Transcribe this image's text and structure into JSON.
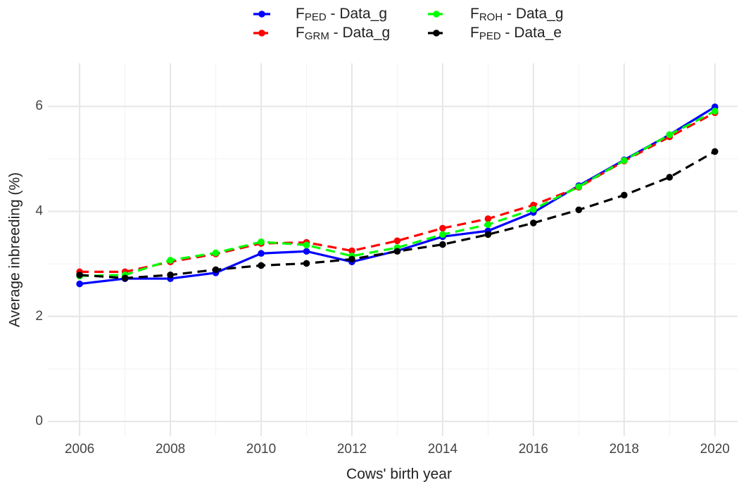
{
  "chart_data": {
    "type": "line",
    "x_label": "Cows' birth year",
    "y_label": "Average inbreeding (%)",
    "x": [
      2006,
      2007,
      2008,
      2009,
      2010,
      2011,
      2012,
      2013,
      2014,
      2015,
      2016,
      2017,
      2018,
      2019,
      2020
    ],
    "series": [
      {
        "name": [
          "F",
          "PED",
          " - Data_g"
        ],
        "color": "#0000ff",
        "line_style": "solid",
        "values": [
          2.62,
          2.72,
          2.72,
          2.83,
          3.2,
          3.24,
          3.04,
          3.25,
          3.52,
          3.63,
          3.98,
          4.49,
          4.98,
          5.46,
          5.99
        ]
      },
      {
        "name": [
          "F",
          "GRM",
          " - Data_g"
        ],
        "color": "#ff0000",
        "line_style": "dashed",
        "values": [
          2.85,
          2.85,
          3.04,
          3.19,
          3.39,
          3.41,
          3.25,
          3.44,
          3.68,
          3.86,
          4.12,
          4.46,
          4.96,
          5.42,
          5.88
        ]
      },
      {
        "name": [
          "F",
          "ROH",
          " - Data_g"
        ],
        "color": "#00ff00",
        "line_style": "dashed",
        "values": [
          2.77,
          2.79,
          3.07,
          3.21,
          3.42,
          3.36,
          3.15,
          3.31,
          3.56,
          3.75,
          4.04,
          4.47,
          4.97,
          5.46,
          5.91
        ]
      },
      {
        "name": [
          "F",
          "PED",
          " - Data_e"
        ],
        "color": "#000000",
        "line_style": "dashed",
        "values": [
          2.79,
          2.73,
          2.79,
          2.89,
          2.97,
          3.01,
          3.09,
          3.24,
          3.37,
          3.56,
          3.78,
          4.03,
          4.31,
          4.65,
          5.14
        ]
      }
    ],
    "xlim": [
      2005.3,
      2020.5
    ],
    "xticks": [
      2006,
      2008,
      2010,
      2012,
      2014,
      2016,
      2018,
      2020
    ],
    "ylim": [
      -0.28,
      6.82
    ],
    "yticks": [
      0,
      2,
      4,
      6
    ],
    "grid": true,
    "minor_grid": true,
    "legend_position": "top"
  }
}
